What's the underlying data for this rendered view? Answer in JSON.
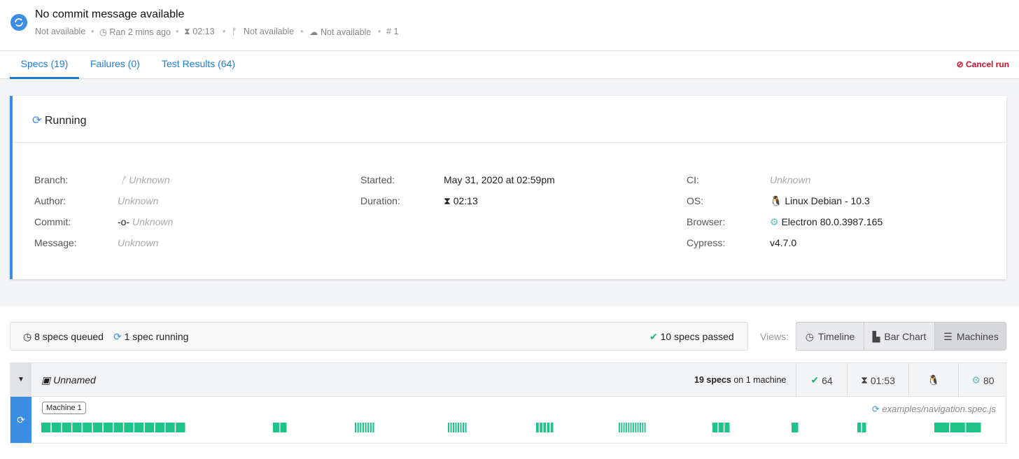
{
  "header": {
    "title": "No commit message available",
    "meta": [
      "Not available",
      "Ran 2 mins ago",
      "02:13",
      "Not available",
      "Not available",
      "1"
    ]
  },
  "tabs": {
    "items": [
      "Specs (19)",
      "Failures (0)",
      "Test Results (64)"
    ],
    "action": "Cancel run"
  },
  "run": {
    "status": "Running",
    "details": [
      [
        {
          "label": "Branch:",
          "value": "Unknown"
        },
        {
          "label": "Author:",
          "value": "Unknown"
        },
        {
          "label": "Commit:",
          "value": "Unknown"
        },
        {
          "label": "Message:",
          "value": "Unknown"
        }
      ],
      [
        {
          "label": "Started:",
          "value": "May 31, 2020 at 02:59pm"
        },
        {
          "label": "Duration:",
          "value": "02:13"
        }
      ],
      [
        {
          "label": "CI:",
          "value": "Unknown"
        },
        {
          "label": "OS:",
          "value": "Linux Debian - 10.3"
        },
        {
          "label": "Browser:",
          "value": "Electron 80.0.3987.165"
        },
        {
          "label": "Cypress:",
          "value": "v4.7.0"
        }
      ]
    ]
  },
  "summary": {
    "queued": "8 specs queued",
    "running": "1 spec running",
    "passed": "10 specs passed"
  },
  "views": {
    "label": "Views:",
    "options": [
      "Timeline",
      "Bar Chart",
      "Machines"
    ]
  },
  "group": {
    "name": "Unnamed",
    "specs": "19 specs",
    "machines": "on 1 machine",
    "passed": "64",
    "duration": "01:53",
    "browser_version": "80"
  },
  "machine": {
    "name": "Machine 1",
    "current_spec": "examples/navigation.spec.js"
  }
}
